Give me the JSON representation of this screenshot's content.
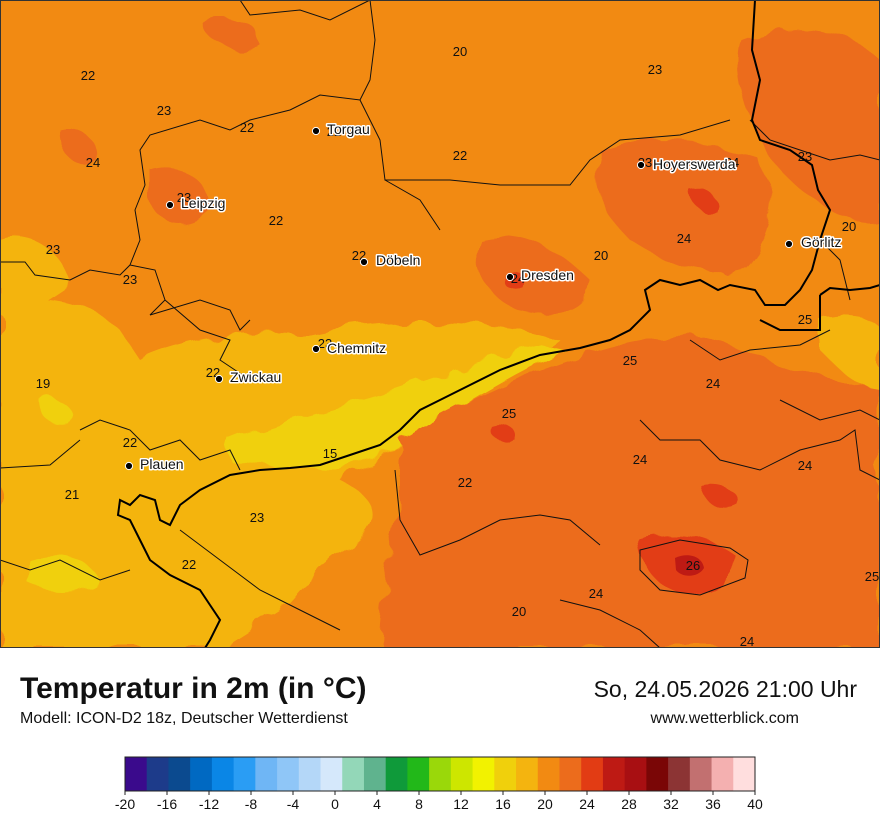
{
  "header": {
    "title": "Temperatur in 2m (in °C)",
    "subtitle": "Modell: ICON-D2 18z, Deutscher Wetterdienst",
    "datetime": "So, 24.05.2026 21:00 Uhr",
    "website": "www.wetterblick.com"
  },
  "cities": [
    {
      "name": "Torgau"
    },
    {
      "name": "Leipzig"
    },
    {
      "name": "Hoyerswerda"
    },
    {
      "name": "Görlitz"
    },
    {
      "name": "Döbeln"
    },
    {
      "name": "Dresden"
    },
    {
      "name": "Chemnitz"
    },
    {
      "name": "Zwickau"
    },
    {
      "name": "Plauen"
    }
  ],
  "temperature_labels": [
    "20",
    "22",
    "23",
    "22",
    "22",
    "23",
    "24",
    "23",
    "22",
    "23",
    "24",
    "24",
    "20",
    "23",
    "22",
    "24",
    "20",
    "23",
    "23",
    "22",
    "25",
    "23",
    "25",
    "19",
    "22",
    "24",
    "25",
    "22",
    "15",
    "24",
    "24",
    "21",
    "23",
    "22",
    "26",
    "25",
    "24",
    "20",
    "24",
    "22",
    "23"
  ],
  "legend": {
    "ticks": [
      "-20",
      "-16",
      "-12",
      "-8",
      "-4",
      "0",
      "4",
      "8",
      "12",
      "16",
      "20",
      "24",
      "28",
      "32",
      "36",
      "40"
    ],
    "colors": [
      "#3a0a8c",
      "#1d3b8a",
      "#0b4a8f",
      "#0069c2",
      "#0a86e6",
      "#2a9df4",
      "#6fb6f5",
      "#8fc6f7",
      "#b4d7f8",
      "#d5e8fb",
      "#93d7b8",
      "#5fb38e",
      "#0f9a3a",
      "#22b819",
      "#9ad80a",
      "#cde600",
      "#f2f200",
      "#f0d00c",
      "#f4b40f",
      "#f28a12",
      "#ec6c1c",
      "#e23c14",
      "#be1a14",
      "#a80f12",
      "#7a0606",
      "#8c3434",
      "#c27070",
      "#f4b0b0",
      "#ffdede"
    ]
  }
}
